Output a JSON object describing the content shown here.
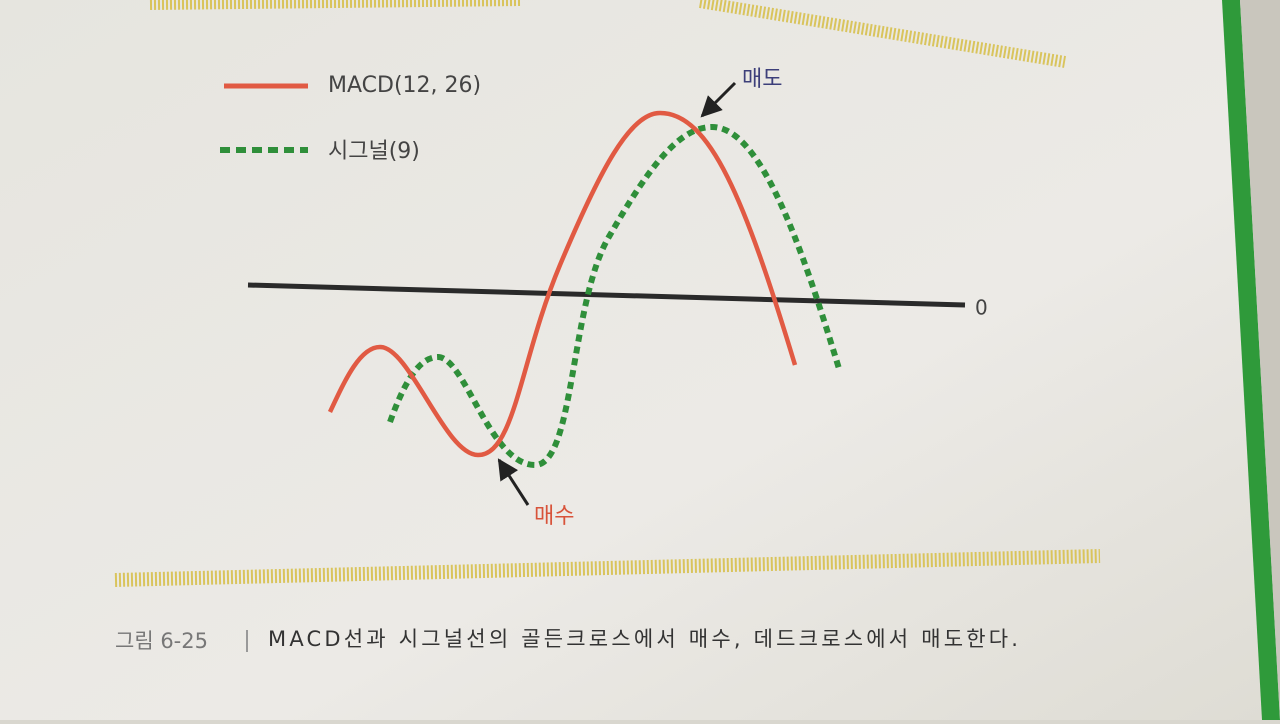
{
  "figure": {
    "legend": [
      {
        "label": "MACD(12, 26)"
      },
      {
        "label": "시그널(9)"
      }
    ],
    "annotations": {
      "sell": "매도",
      "buy": "매수",
      "zero": "0"
    },
    "caption": {
      "number": "그림 6-25",
      "text": "MACD선과 시그널선의 골든크로스에서 매수, 데드크로스에서 매도한다."
    }
  }
}
